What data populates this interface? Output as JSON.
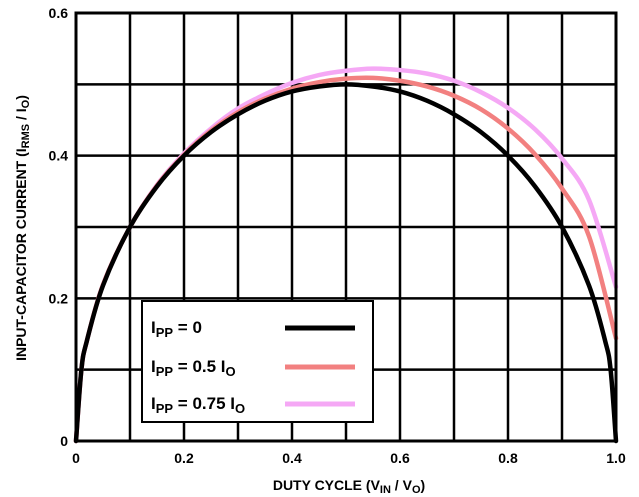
{
  "chart_data": {
    "type": "line",
    "xlabel": {
      "main": "DUTY CYCLE (V",
      "sub1": "IN",
      "mid": " / V",
      "sub2": "O",
      "end": ")"
    },
    "ylabel": {
      "main": "INPUT-CAPACITOR CURRENT (I",
      "sub1": "RMS",
      "mid": " / I",
      "sub2": "O",
      "end": ")"
    },
    "xlim": [
      0,
      1.0
    ],
    "ylim": [
      0,
      0.6
    ],
    "x_ticks": [
      0,
      0.2,
      0.4,
      0.6,
      0.8,
      1.0
    ],
    "x_tick_labels": [
      "0",
      "0.2",
      "0.4",
      "0.6",
      "0.8",
      "1.0"
    ],
    "y_ticks": [
      0,
      0.2,
      0.4,
      0.6
    ],
    "y_tick_labels": [
      "0",
      "0.2",
      "0.4",
      "0.6"
    ],
    "grid": true,
    "legend_position": "bottom-left",
    "series": [
      {
        "name": "IPP = 0",
        "label": {
          "pre": "I",
          "sub": "PP",
          "post": " = 0",
          "sub2": ""
        },
        "color": "#000000",
        "x": [
          0,
          0.01,
          0.02,
          0.05,
          0.1,
          0.15,
          0.2,
          0.25,
          0.3,
          0.35,
          0.4,
          0.45,
          0.5,
          0.55,
          0.6,
          0.65,
          0.7,
          0.75,
          0.8,
          0.85,
          0.9,
          0.95,
          0.98,
          0.99,
          1.0
        ],
        "y": [
          0,
          0.1,
          0.14,
          0.218,
          0.3,
          0.357,
          0.4,
          0.433,
          0.458,
          0.477,
          0.49,
          0.497,
          0.5,
          0.497,
          0.49,
          0.477,
          0.458,
          0.433,
          0.4,
          0.357,
          0.3,
          0.218,
          0.14,
          0.1,
          0
        ]
      },
      {
        "name": "IPP = 0.5 IO",
        "label": {
          "pre": "I",
          "sub": "PP",
          "post": " = 0.5 I",
          "sub2": "O"
        },
        "color": "#f28080",
        "x": [
          0,
          0.01,
          0.02,
          0.05,
          0.1,
          0.15,
          0.2,
          0.25,
          0.3,
          0.35,
          0.4,
          0.45,
          0.5,
          0.55,
          0.6,
          0.65,
          0.7,
          0.75,
          0.8,
          0.85,
          0.9,
          0.95,
          1.0
        ],
        "y": [
          0,
          0.1,
          0.14,
          0.219,
          0.3,
          0.358,
          0.401,
          0.435,
          0.461,
          0.48,
          0.494,
          0.503,
          0.508,
          0.509,
          0.505,
          0.497,
          0.484,
          0.465,
          0.438,
          0.402,
          0.354,
          0.287,
          0.144
        ]
      },
      {
        "name": "IPP = 0.75 IO",
        "label": {
          "pre": "I",
          "sub": "PP",
          "post": " = 0.75 I",
          "sub2": "O"
        },
        "color": "#f5a8f5",
        "x": [
          0,
          0.01,
          0.02,
          0.05,
          0.1,
          0.15,
          0.2,
          0.25,
          0.3,
          0.35,
          0.4,
          0.45,
          0.5,
          0.55,
          0.6,
          0.65,
          0.7,
          0.75,
          0.8,
          0.85,
          0.9,
          0.95,
          1.0
        ],
        "y": [
          0,
          0.1,
          0.14,
          0.219,
          0.3,
          0.359,
          0.403,
          0.438,
          0.466,
          0.486,
          0.502,
          0.513,
          0.519,
          0.522,
          0.52,
          0.515,
          0.505,
          0.489,
          0.467,
          0.437,
          0.396,
          0.338,
          0.216
        ]
      }
    ]
  }
}
